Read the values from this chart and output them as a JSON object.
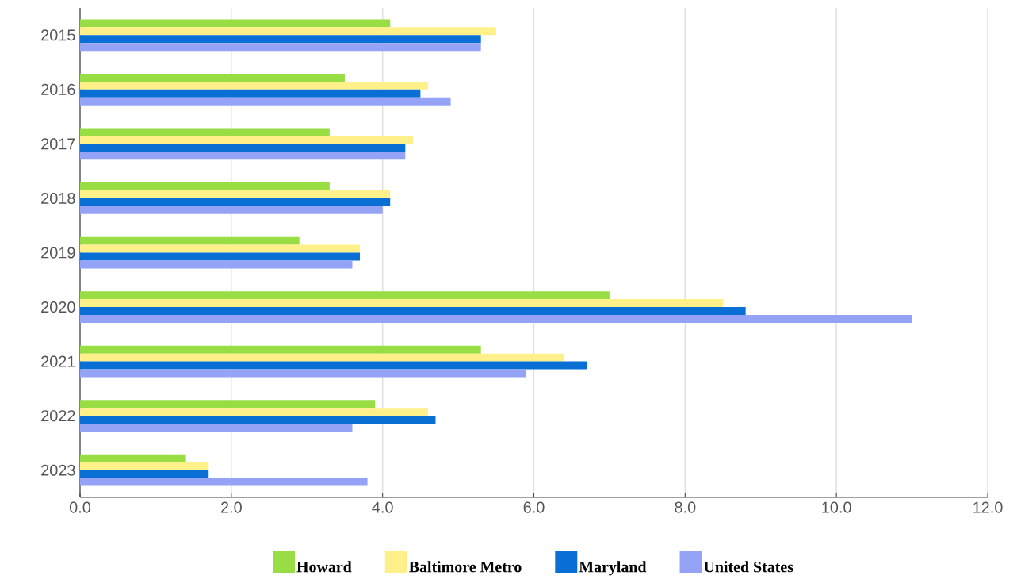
{
  "chart_data": {
    "type": "bar",
    "orientation": "horizontal",
    "categories": [
      "2015",
      "2016",
      "2017",
      "2018",
      "2019",
      "2020",
      "2021",
      "2022",
      "2023"
    ],
    "series": [
      {
        "name": "Howard",
        "color": "#99dd44",
        "values": [
          4.1,
          3.5,
          3.3,
          3.3,
          2.9,
          7.0,
          5.3,
          3.9,
          1.4
        ]
      },
      {
        "name": "Baltimore Metro",
        "color": "#fff08a",
        "values": [
          5.5,
          4.6,
          4.4,
          4.1,
          3.7,
          8.5,
          6.4,
          4.6,
          1.7
        ]
      },
      {
        "name": "Maryland",
        "color": "#0a6fd4",
        "values": [
          5.3,
          4.5,
          4.3,
          4.1,
          3.7,
          8.8,
          6.7,
          4.7,
          1.7
        ]
      },
      {
        "name": "United States",
        "color": "#94a3f5",
        "values": [
          5.3,
          4.9,
          4.3,
          4.0,
          3.6,
          11.0,
          5.9,
          3.6,
          3.8
        ]
      }
    ],
    "xlim": [
      0,
      12
    ],
    "xticks": [
      {
        "value": 0,
        "label": "0.0"
      },
      {
        "value": 2,
        "label": "2.0"
      },
      {
        "value": 4,
        "label": "4.0"
      },
      {
        "value": 6,
        "label": "6.0"
      },
      {
        "value": 8,
        "label": "8.0"
      },
      {
        "value": 10,
        "label": "10.0"
      },
      {
        "value": 12,
        "label": "12.0"
      }
    ],
    "grid": "x",
    "legend": "bottom"
  }
}
